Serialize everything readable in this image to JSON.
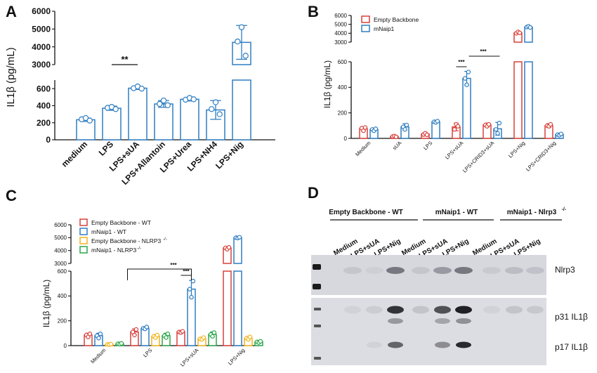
{
  "figure": {
    "panels": [
      "A",
      "B",
      "C",
      "D"
    ],
    "ylabel": "IL1β (pg/mL)"
  },
  "chart_data": [
    {
      "panel": "A",
      "type": "bar",
      "ylabel": "IL1β (pg/mL)",
      "broken_axis": true,
      "ylim_lower": [
        0,
        700
      ],
      "ylim_upper": [
        3000,
        6000
      ],
      "yticks_lower": [
        0,
        200,
        400,
        600
      ],
      "yticks_upper": [
        3000,
        4000,
        5000,
        6000
      ],
      "categories": [
        "medium",
        "LPS",
        "LPS+sUA",
        "LPS+Allantoin",
        "LPS+Urea",
        "LPS+NH4",
        "LPS+Nig"
      ],
      "series": [
        {
          "values": [
            235,
            370,
            605,
            420,
            475,
            350,
            4250
          ],
          "errors": [
            20,
            25,
            15,
            40,
            20,
            110,
            950
          ],
          "points": [
            [
              240,
              255,
              225
            ],
            [
              375,
              385,
              360
            ],
            [
              605,
              625,
              600
            ],
            [
              420,
              460,
              405
            ],
            [
              470,
              490,
              475
            ],
            [
              360,
              440,
              300
            ],
            [
              4300,
              5100,
              3500
            ]
          ],
          "color": "#2f7ec2"
        }
      ],
      "annotations": [
        {
          "text": "**",
          "between": [
            1,
            2
          ]
        }
      ],
      "colors": {
        "bar": "#2f7ec2"
      }
    },
    {
      "panel": "B",
      "type": "bar",
      "ylabel": "IL1β (pg/mL)",
      "broken_axis": true,
      "ylim_lower": [
        0,
        600
      ],
      "ylim_upper": [
        3000,
        6000
      ],
      "yticks_lower": [
        0,
        200,
        400,
        600
      ],
      "yticks_upper": [
        3000,
        4000,
        5000,
        6000
      ],
      "categories": [
        "Medium",
        "sUA",
        "LPS",
        "LPS+sUA",
        "LPS+CRID3+sUA",
        "LPS+Nig",
        "LPS+CRID3+Nig"
      ],
      "legend": [
        "Empty Backbone",
        "mNaip1"
      ],
      "series": [
        {
          "name": "Empty Backbone",
          "values": [
            75,
            15,
            35,
            90,
            105,
            4050,
            100
          ],
          "errors": [
            15,
            5,
            10,
            30,
            15,
            120,
            15
          ],
          "points": [
            [
              80,
              60,
              85
            ],
            [
              15,
              18,
              12
            ],
            [
              30,
              40,
              28
            ],
            [
              70,
              110,
              95
            ],
            [
              105,
              95,
              110
            ],
            [
              4000,
              4150,
              4050
            ],
            [
              100,
              95,
              110
            ]
          ],
          "color": "#d9403a"
        },
        {
          "name": "mNaip1",
          "values": [
            70,
            90,
            130,
            470,
            75,
            4700,
            30
          ],
          "errors": [
            10,
            25,
            5,
            55,
            50,
            60,
            10
          ],
          "points": [
            [
              70,
              60,
              75
            ],
            [
              90,
              70,
              105
            ],
            [
              130,
              125,
              135
            ],
            [
              470,
              420,
              520
            ],
            [
              70,
              40,
              120
            ],
            [
              4700,
              4780,
              4650
            ],
            [
              30,
              25,
              35
            ]
          ],
          "color": "#2f7ec2"
        }
      ],
      "annotations": [
        {
          "text": "***",
          "between": [
            3,
            3
          ]
        },
        {
          "text": "***",
          "between": [
            3,
            4
          ]
        }
      ]
    },
    {
      "panel": "C",
      "type": "bar",
      "ylabel": "IL1β (pg/mL)",
      "broken_axis": true,
      "ylim_lower": [
        0,
        600
      ],
      "ylim_upper": [
        3000,
        6000
      ],
      "yticks_lower": [
        0,
        200,
        400,
        600
      ],
      "yticks_upper": [
        3000,
        4000,
        5000,
        6000
      ],
      "categories": [
        "Medium",
        "LPS",
        "LPS+sUA",
        "LPS+Nig"
      ],
      "legend": [
        "Empty Backbone - WT",
        "mNaip1 - WT",
        "Empty Backbone - NLRP3",
        "mNaip1 - NLRP3"
      ],
      "legend_superscript": "-/-",
      "series": [
        {
          "name": "Empty Backbone - WT",
          "values": [
            85,
            110,
            110,
            4200
          ],
          "errors": [
            15,
            25,
            10,
            100
          ],
          "points": [
            [
              85,
              70,
              95
            ],
            [
              110,
              85,
              130
            ],
            [
              110,
              105,
              115
            ],
            [
              4200,
              4100,
              4250
            ]
          ],
          "color": "#d9403a"
        },
        {
          "name": "mNaip1 - WT",
          "values": [
            80,
            140,
            455,
            5000
          ],
          "errors": [
            20,
            10,
            70,
            40
          ],
          "points": [
            [
              80,
              60,
              95
            ],
            [
              140,
              135,
              150
            ],
            [
              455,
              390,
              520
            ],
            [
              5000,
              4970,
              5030
            ]
          ],
          "color": "#2f7ec2"
        },
        {
          "name": "Empty Backbone - NLRP3-/-",
          "values": [
            10,
            75,
            55,
            60
          ],
          "errors": [
            5,
            15,
            10,
            15
          ],
          "points": [
            [
              10,
              8,
              12
            ],
            [
              75,
              65,
              85
            ],
            [
              55,
              50,
              65
            ],
            [
              60,
              50,
              70
            ]
          ],
          "color": "#f2b41c"
        },
        {
          "name": "mNaip1 - NLRP3-/-",
          "values": [
            15,
            80,
            90,
            30
          ],
          "errors": [
            5,
            20,
            20,
            10
          ],
          "points": [
            [
              15,
              12,
              18
            ],
            [
              80,
              65,
              95
            ],
            [
              90,
              75,
              105
            ],
            [
              30,
              25,
              35
            ]
          ],
          "color": "#2ca64a"
        }
      ],
      "annotations": [
        {
          "text": "***",
          "between": [
            2,
            2
          ]
        },
        {
          "text": "***",
          "between": [
            1,
            2
          ]
        }
      ]
    }
  ],
  "blot": {
    "panel": "D",
    "groups": [
      {
        "label": "Empty Backbone - WT"
      },
      {
        "label": "mNaip1 - WT"
      },
      {
        "label": "mNaip1 - Nlrp3",
        "superscript": "-/-"
      }
    ],
    "lanes": [
      "Medium",
      "LPS+sUA",
      "LPS+Nig",
      "Medium",
      "LPS+sUA",
      "LPS+Nig",
      "Medium",
      "LPS+sUA",
      "LPS+Nig"
    ],
    "bands": [
      "Nlrp3",
      "p31 IL1β",
      "p17 IL1β"
    ]
  }
}
